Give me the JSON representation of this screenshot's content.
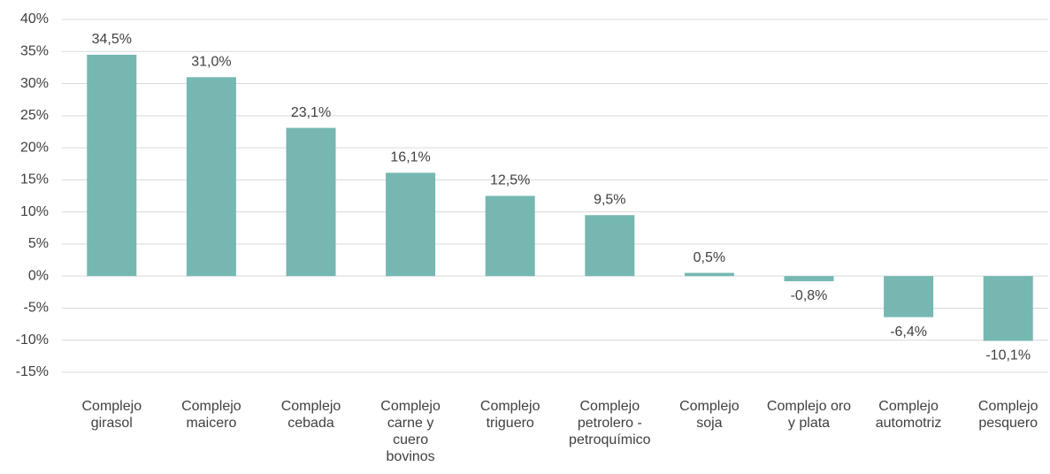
{
  "chart_data": {
    "type": "bar",
    "categories": [
      "Complejo girasol",
      "Complejo maicero",
      "Complejo cebada",
      "Complejo carne y cuero bovinos",
      "Complejo triguero",
      "Complejo petrolero - petroquímico",
      "Complejo soja",
      "Complejo oro y plata",
      "Complejo automotriz",
      "Complejo pesquero"
    ],
    "values": [
      34.5,
      31.0,
      23.1,
      16.1,
      12.5,
      9.5,
      0.5,
      -0.8,
      -6.4,
      -10.1
    ],
    "value_labels": [
      "34,5%",
      "31,0%",
      "23,1%",
      "16,1%",
      "12,5%",
      "9,5%",
      "0,5%",
      "-0,8%",
      "-6,4%",
      "-10,1%"
    ],
    "color": "#76b7b2",
    "ylim": [
      -15,
      40
    ],
    "yticks": [
      {
        "value": -15,
        "label": "-15%"
      },
      {
        "value": -10,
        "label": "-10%"
      },
      {
        "value": -5,
        "label": "-5%"
      },
      {
        "value": 0,
        "label": "0%"
      },
      {
        "value": 5,
        "label": "5%"
      },
      {
        "value": 10,
        "label": "10%"
      },
      {
        "value": 15,
        "label": "15%"
      },
      {
        "value": 20,
        "label": "20%"
      },
      {
        "value": 25,
        "label": "25%"
      },
      {
        "value": 30,
        "label": "30%"
      },
      {
        "value": 35,
        "label": "35%"
      },
      {
        "value": 40,
        "label": "40%"
      }
    ],
    "grid": true
  }
}
